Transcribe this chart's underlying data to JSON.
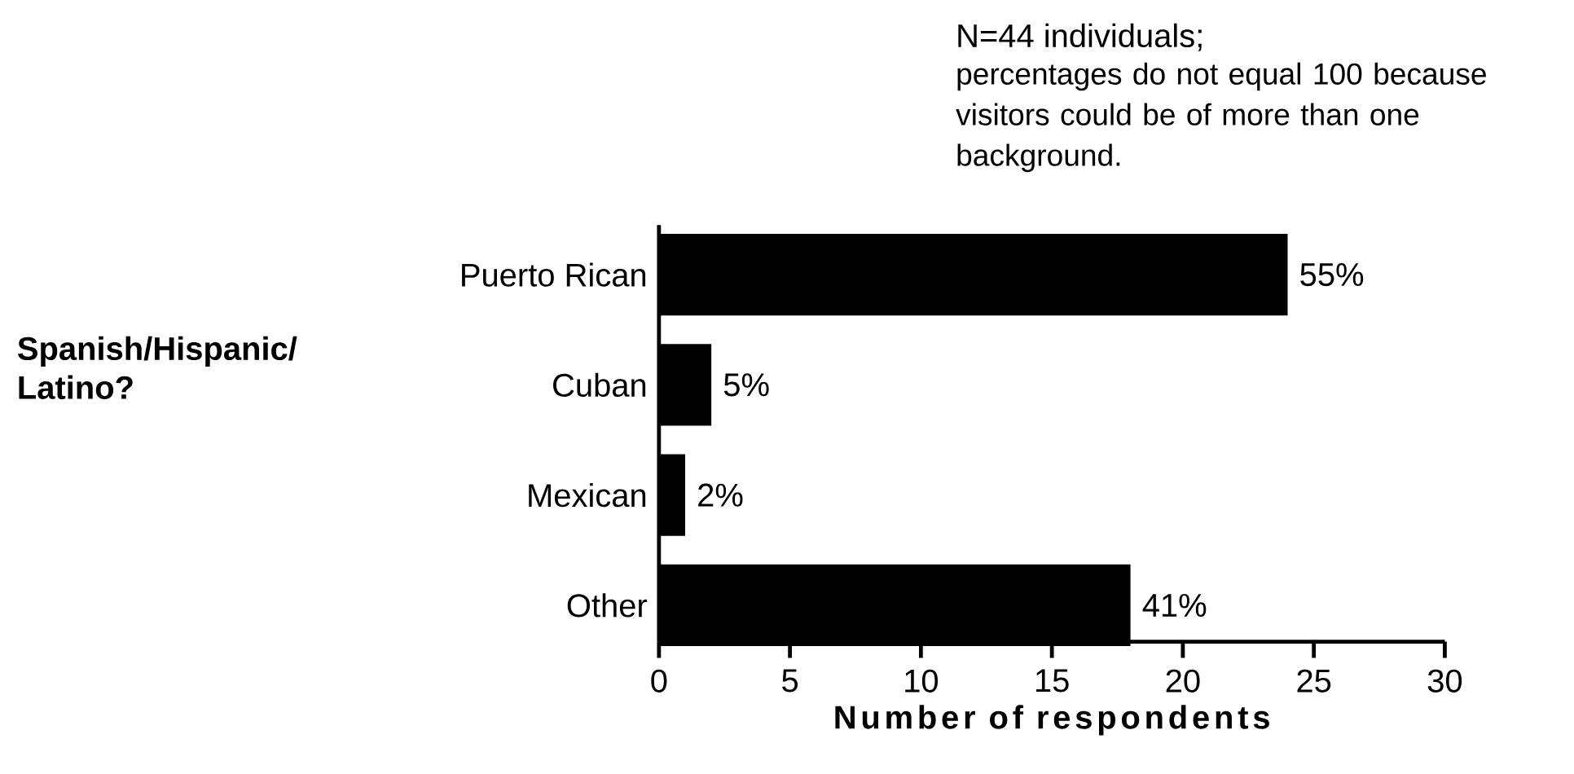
{
  "chart_data": {
    "type": "bar",
    "orientation": "horizontal",
    "xlabel": "Number of respondents",
    "annotations": [
      "N=44 individuals;",
      "percentages do not equal 100 because visitors could be of more than one background.",
      "Spanish/Hispanic/ Latino?",
      {
        "text": "55%",
        "x": 24,
        "y": "Puerto Rican"
      },
      {
        "text": "5%",
        "x": 2,
        "y": "Cuban"
      },
      {
        "text": "2%",
        "x": 1,
        "y": "Mexican"
      },
      {
        "text": "41%",
        "x": 18,
        "y": "Other"
      }
    ],
    "categories": [
      "Puerto Rican",
      "Cuban",
      "Mexican",
      "Other"
    ],
    "values": [
      24,
      2,
      1,
      18
    ],
    "color": "#000000",
    "xlim": [
      0,
      30
    ],
    "xticks": [
      0,
      5,
      10,
      15,
      20,
      25,
      30
    ],
    "grid": false
  }
}
